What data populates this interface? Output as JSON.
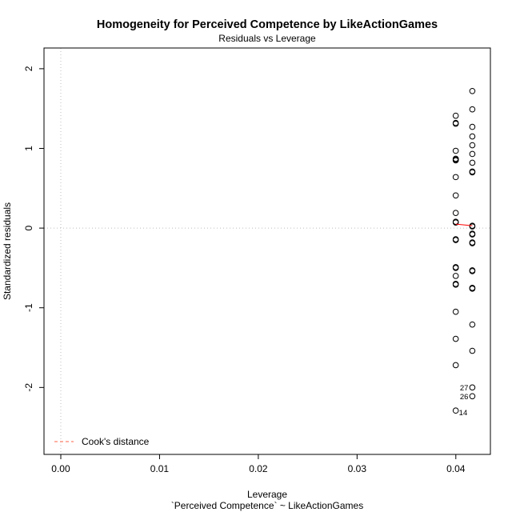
{
  "chart_data": {
    "type": "scatter",
    "title": "Homogeneity for Perceived Competence by LikeActionGames",
    "subtitle": "Residuals vs Leverage",
    "xlabel": "Leverage",
    "xlabel2": "`Perceived Competence` ~ LikeActionGames",
    "ylabel": "Standardized residuals",
    "xlim": [
      -0.0017,
      0.0435
    ],
    "ylim": [
      -2.84,
      2.26
    ],
    "xticks": [
      "0.00",
      "0.01",
      "0.02",
      "0.03",
      "0.04"
    ],
    "yticks": [
      "-2",
      "-1",
      "0",
      "1",
      "2"
    ],
    "grid": false,
    "legend": {
      "position": "bottom-left",
      "entries": [
        "Cook's distance"
      ]
    },
    "series": [
      {
        "x": [
          0.03999,
          0.03999,
          0.03999,
          0.03999,
          0.03999,
          0.03999,
          0.03999,
          0.03999,
          0.03999,
          0.03999,
          0.03999,
          0.03999,
          0.03999,
          0.03999,
          0.03999,
          0.03999,
          0.03999,
          0.03999,
          0.03999,
          0.03999,
          0.03999,
          0.03999,
          0.03999
        ],
        "y": [
          1.41,
          1.31,
          1.32,
          0.97,
          0.86,
          0.87,
          0.64,
          0.41,
          0.19,
          0.08,
          -0.15,
          -0.14,
          -0.49,
          -0.5,
          -0.6,
          -0.71,
          -0.7,
          -1.05,
          -1.39,
          -1.72,
          -2.29,
          0.07,
          0.85
        ]
      },
      {
        "x": [
          0.04167,
          0.04167,
          0.04167,
          0.04167,
          0.04167,
          0.04167,
          0.04167,
          0.04167,
          0.04167,
          0.04167,
          0.04167,
          0.04167,
          0.04167,
          0.04167,
          0.04167,
          0.04167,
          0.04167,
          0.04167,
          0.04167,
          0.04167,
          0.04167,
          0.04167
        ],
        "y": [
          1.72,
          1.49,
          1.27,
          1.15,
          1.04,
          0.93,
          0.82,
          0.71,
          0.7,
          0.03,
          0.02,
          -0.07,
          -0.08,
          -0.19,
          -0.18,
          -0.53,
          -0.54,
          -0.75,
          -0.76,
          -1.21,
          -1.54,
          -2.0
        ]
      },
      {
        "x": [
          0.04167
        ],
        "y": [
          -2.11
        ]
      }
    ],
    "point_labels": [
      {
        "text": "27",
        "x": 0.04167,
        "y": -2.0
      },
      {
        "text": "26",
        "x": 0.04167,
        "y": -2.11
      },
      {
        "text": "14",
        "x": 0.03999,
        "y": -2.29
      }
    ],
    "cooks_smoother": {
      "x": [
        0.03999,
        0.04167
      ],
      "y": [
        0.05,
        0.03
      ]
    },
    "reference_lines": {
      "vertical_x": 0,
      "horizontal_y": 0
    },
    "colors": {
      "points": "#000000",
      "smoother": "#ff0000",
      "cooks": "#ff6347",
      "refline": "#bebebe"
    }
  }
}
